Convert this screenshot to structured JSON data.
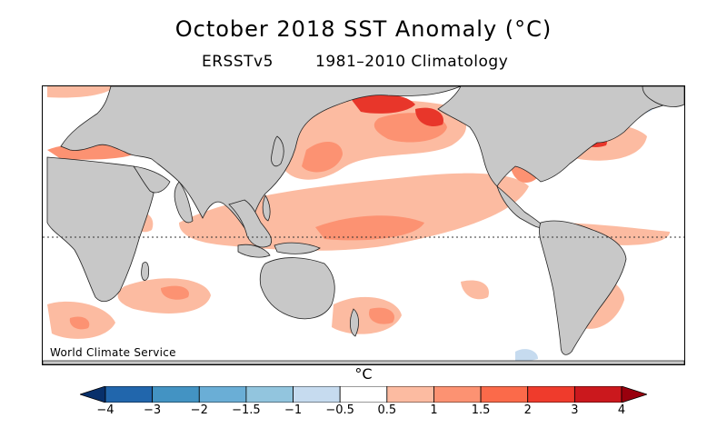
{
  "title": "October 2018 SST Anomaly (°C)",
  "dataset": "ERSSTv5",
  "climatology": "1981–2010 Climatology",
  "credit": "World Climate Service",
  "unit": "°C",
  "colorbar": {
    "labels": [
      "−4",
      "−3",
      "−2",
      "−1.5",
      "−1",
      "−0.5",
      "0.5",
      "1",
      "1.5",
      "2",
      "3",
      "4"
    ],
    "colors": [
      "#08306b",
      "#2166ac",
      "#4393c3",
      "#6aaed6",
      "#92c5de",
      "#c6dbef",
      "#ffffff",
      "#fcbba1",
      "#fc9272",
      "#fb6a4a",
      "#ef3b2c",
      "#cb181d",
      "#99000d"
    ]
  },
  "map_colors": {
    "land": "#c8c8c8",
    "ocean": "#ffffff",
    "warm_light": "#fcbba1",
    "warm_mid": "#fc9272",
    "warm_strong": "#fb6a4a",
    "warm_hot": "#e8362a",
    "cool_light": "#c6dbef"
  }
}
